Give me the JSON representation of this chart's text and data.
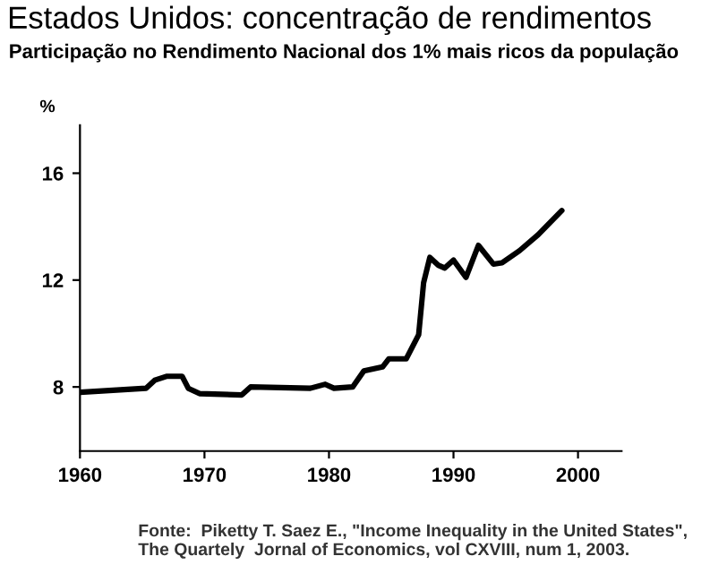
{
  "chart_data": {
    "type": "line",
    "title": "Estados Unidos: concentração de rendimentos",
    "subtitle": "Participação no Rendimento Nacional dos 1% mais ricos da população",
    "ylabel": "%",
    "x": [
      1960,
      1965.3,
      1966,
      1967,
      1968.2,
      1968.7,
      1969.6,
      1973,
      1973.7,
      1978.5,
      1979.7,
      1980.4,
      1981.9,
      1982.8,
      1984.3,
      1984.8,
      1986.2,
      1987.2,
      1987.6,
      1988.1,
      1988.8,
      1989.3,
      1990,
      1991,
      1992,
      1993.2,
      1993.9,
      1995.3,
      1996.8,
      1998.7
    ],
    "series": [
      {
        "color": "#000000",
        "values": [
          7.8,
          7.95,
          8.25,
          8.4,
          8.4,
          7.95,
          7.75,
          7.7,
          8.0,
          7.95,
          8.1,
          7.95,
          8.0,
          8.6,
          8.75,
          9.05,
          9.05,
          9.95,
          11.9,
          12.85,
          12.55,
          12.45,
          12.75,
          12.1,
          13.3,
          12.6,
          12.65,
          13.1,
          13.7,
          14.6
        ]
      }
    ],
    "xlim": [
      1960,
      2003.5
    ],
    "xticks": [
      1960,
      1970,
      1980,
      1990,
      2000
    ],
    "ylim": [
      5.6,
      17.8
    ],
    "yticks": [
      8,
      12,
      16
    ],
    "grid": false,
    "legend": false,
    "annotations": [
      "Fonte:  Piketty T. Saez E., \"Income Inequality in the United States\",\nThe Quartely  Jornal of Economics, vol CXVIII, num 1, 2003."
    ]
  }
}
